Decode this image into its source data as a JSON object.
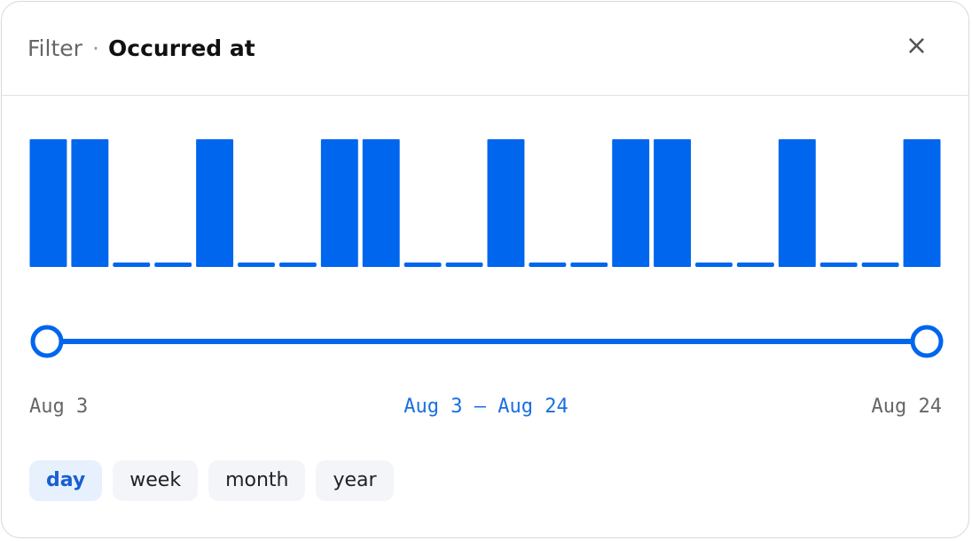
{
  "header": {
    "label": "Filter",
    "separator": "·",
    "field": "Occurred at",
    "close": "×"
  },
  "histogram": {
    "type": "bar",
    "color": "#0066ee",
    "values": [
      1,
      1,
      0,
      0,
      1,
      0,
      0,
      1,
      1,
      0,
      0,
      1,
      0,
      0,
      1,
      1,
      0,
      0,
      1,
      0,
      0,
      1
    ]
  },
  "range": {
    "start": "Aug 3",
    "end": "Aug 24",
    "selected": "Aug 3 — Aug 24"
  },
  "units": {
    "options": [
      "day",
      "week",
      "month",
      "year"
    ],
    "active": 0
  }
}
